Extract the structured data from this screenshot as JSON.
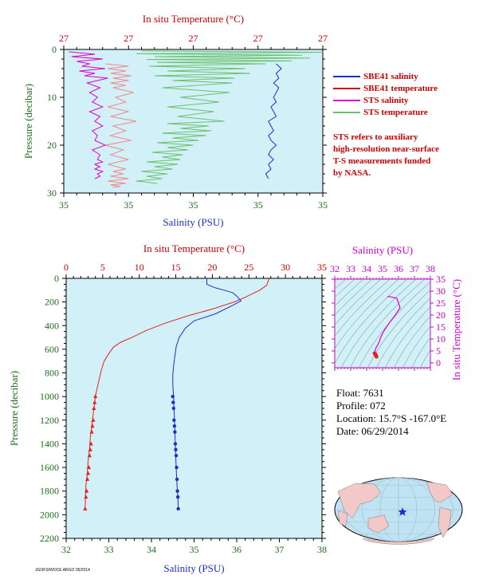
{
  "colors": {
    "bg": "#d1f0f8",
    "temperature": "#e8211d",
    "salinity": "#1a2fcf",
    "sts_salinity": "#dd00cc",
    "sts_temperature": "#6cc26c",
    "sbe_temperature": "#f08a8a",
    "axis_red": "#cc0000",
    "axis_green": "#1e6e1e",
    "axis_blue": "#1a2fcf",
    "axis_magenta": "#cc00cc"
  },
  "legend": {
    "items": [
      {
        "label": "SBE41 salinity",
        "color": "#1a2fcf"
      },
      {
        "label": "SBE41 temperature",
        "color": "#cc0000"
      },
      {
        "label": "STS salinity",
        "color": "#dd00cc"
      },
      {
        "label": "STS temperature",
        "color": "#6cc26c"
      }
    ]
  },
  "note": {
    "lines": [
      "STS refers to auxiliary",
      "high-resolution near-surface",
      "T-S measurements funded",
      "by NASA."
    ]
  },
  "float_info": {
    "float": "Float:  7631",
    "profile": "Profile:  072",
    "location": "Location:  15.7°S  -167.0°E",
    "date": "Date:  06/29/2014"
  },
  "credit": "JGOFS/WOCE  ARGO  05/2014",
  "chart_data": [
    {
      "type": "line",
      "panel": "near-surface",
      "title": "In situ Temperature (°C)",
      "xlabel": "Salinity (PSU)",
      "ylabel": "Pressure (decibar)",
      "top_ticks": [
        "27",
        "27",
        "27",
        "27",
        "27"
      ],
      "bottom_ticks": [
        "35",
        "35",
        "35",
        "35",
        "35"
      ],
      "y_ticks": [
        "0",
        "10",
        "20",
        "30"
      ],
      "ylim": [
        0,
        30
      ],
      "series": [
        {
          "name": "SBE41 salinity",
          "color": "#1a2fcf",
          "x": [
            0.82,
            0.84,
            0.82,
            0.83,
            0.81,
            0.83,
            0.82,
            0.81,
            0.82,
            0.8,
            0.81,
            0.82,
            0.79,
            0.8,
            0.81,
            0.79,
            0.8,
            0.82,
            0.8,
            0.79,
            0.81,
            0.79,
            0.8,
            0.78,
            0.79
          ],
          "y": [
            3,
            4,
            5,
            6,
            7,
            8,
            9,
            10,
            11,
            12,
            13,
            14,
            15,
            16,
            17,
            18,
            19,
            20,
            21,
            22,
            23,
            24,
            25,
            26,
            27
          ]
        },
        {
          "name": "SBE41 temperature",
          "color": "#f08a8a",
          "x": [
            0.16,
            0.25,
            0.17,
            0.24,
            0.18,
            0.26,
            0.19,
            0.25,
            0.18,
            0.24,
            0.19,
            0.27,
            0.2,
            0.24,
            0.17,
            0.25,
            0.18,
            0.28,
            0.19,
            0.24,
            0.18,
            0.26,
            0.16,
            0.23,
            0.18,
            0.25,
            0.17,
            0.24,
            0.19,
            0.23,
            0.18,
            0.25,
            0.17,
            0.24,
            0.18,
            0.22,
            0.19
          ],
          "y": [
            3,
            3.5,
            4,
            4.5,
            5,
            5.5,
            6,
            6.5,
            7,
            7.5,
            8,
            9,
            10,
            11,
            12,
            13,
            14,
            15,
            16,
            17,
            18,
            19,
            20,
            21,
            22,
            23,
            24,
            25,
            25.5,
            26,
            26.5,
            27,
            27.5,
            28,
            28.3,
            28.6,
            28.8
          ]
        },
        {
          "name": "STS salinity",
          "color": "#dd00cc",
          "x": [
            0.02,
            0.12,
            0.03,
            0.15,
            0.05,
            0.1,
            0.07,
            0.16,
            0.06,
            0.12,
            0.08,
            0.17,
            0.09,
            0.14,
            0.1,
            0.13,
            0.11,
            0.15,
            0.1,
            0.14,
            0.12,
            0.15,
            0.11,
            0.13,
            0.12,
            0.16,
            0.11,
            0.14,
            0.13,
            0.15,
            0.12,
            0.14,
            0.12,
            0.15,
            0.13,
            0.14,
            0.12
          ],
          "y": [
            0.5,
            1,
            1.5,
            2,
            2.5,
            3,
            3.5,
            4,
            4.5,
            5,
            5.5,
            6,
            7,
            8,
            9,
            10,
            11,
            12,
            13,
            14,
            15,
            16,
            17,
            18,
            19,
            20,
            21,
            22,
            23,
            23.5,
            24,
            24.5,
            25,
            25.5,
            26,
            26.5,
            27
          ]
        },
        {
          "name": "STS temperature",
          "color": "#6cc26c",
          "x": [
            0.3,
            1.0,
            0.28,
            0.92,
            0.35,
            0.95,
            0.32,
            0.88,
            0.36,
            0.78,
            0.33,
            0.7,
            0.4,
            0.72,
            0.35,
            0.66,
            0.42,
            0.65,
            0.38,
            0.64,
            0.45,
            0.6,
            0.4,
            0.58,
            0.44,
            0.62,
            0.4,
            0.56,
            0.45,
            0.57,
            0.38,
            0.55,
            0.42,
            0.52,
            0.36,
            0.5,
            0.4,
            0.48,
            0.34,
            0.46,
            0.38,
            0.45,
            0.32,
            0.44,
            0.35,
            0.42,
            0.3,
            0.4,
            0.32,
            0.38,
            0.28,
            0.36
          ],
          "y": [
            0.3,
            0.6,
            0.9,
            1.2,
            1.5,
            1.8,
            2.1,
            2.4,
            2.7,
            3.0,
            3.5,
            4,
            4.5,
            5,
            5.5,
            6,
            6.5,
            7,
            8,
            9,
            10,
            11,
            12,
            13,
            14,
            15,
            15.5,
            16,
            16.5,
            17,
            17.5,
            18,
            18.5,
            19,
            19.5,
            20,
            20.5,
            21,
            21.5,
            22,
            22.5,
            23,
            23.5,
            24,
            24.5,
            25,
            25.5,
            26,
            26.5,
            27,
            27.5,
            28
          ]
        }
      ]
    },
    {
      "type": "line",
      "panel": "full-depth",
      "title": "In situ Temperature (°C)",
      "xlabel": "Salinity (PSU)",
      "ylabel": "Pressure (decibar)",
      "temperature_ticks": [
        0,
        5,
        10,
        15,
        20,
        25,
        30,
        35
      ],
      "salinity_ticks": [
        32,
        33,
        34,
        35,
        36,
        37,
        38
      ],
      "pressure_ticks": [
        0,
        200,
        400,
        600,
        800,
        1000,
        1200,
        1400,
        1600,
        1800,
        2000,
        2200
      ],
      "xlim_temperature": [
        0,
        35
      ],
      "xlim_salinity": [
        32,
        38
      ],
      "ylim": [
        0,
        2200
      ],
      "series": [
        {
          "name": "Temperature",
          "color": "#e8211d",
          "x": [
            27.8,
            27.6,
            27.4,
            26.5,
            24.5,
            23.0,
            20.0,
            16.5,
            13.5,
            11.0,
            9.0,
            7.5,
            6.5,
            5.8,
            5.2,
            4.8,
            4.5,
            4.2,
            4.0,
            3.9,
            3.7,
            3.5,
            3.3,
            3.2,
            3.0,
            2.9,
            2.7,
            2.6
          ],
          "y": [
            0,
            30,
            60,
            100,
            160,
            200,
            260,
            320,
            380,
            440,
            500,
            540,
            580,
            640,
            700,
            780,
            860,
            940,
            1000,
            1050,
            1150,
            1250,
            1350,
            1450,
            1550,
            1650,
            1750,
            1950
          ]
        },
        {
          "name": "Temperature samples",
          "color": "#e8211d",
          "marker": "triangle",
          "x": [
            4.0,
            3.9,
            3.8,
            3.7,
            3.6,
            3.5,
            3.4,
            3.3,
            3.2,
            3.1,
            3.0,
            2.9,
            2.8,
            2.7,
            2.6
          ],
          "y": [
            1000,
            1050,
            1100,
            1200,
            1250,
            1300,
            1400,
            1450,
            1500,
            1600,
            1650,
            1700,
            1800,
            1850,
            1950
          ]
        },
        {
          "name": "Salinity",
          "color": "#1a2fcf",
          "x": [
            35.3,
            35.3,
            35.5,
            35.7,
            35.9,
            36.0,
            36.1,
            35.9,
            35.5,
            35.0,
            34.8,
            34.65,
            34.58,
            34.55,
            34.52,
            34.5,
            34.5,
            34.52,
            34.54,
            34.56,
            34.58,
            34.6,
            34.62,
            34.63
          ],
          "y": [
            0,
            50,
            80,
            100,
            120,
            150,
            190,
            230,
            300,
            360,
            420,
            500,
            580,
            660,
            740,
            820,
            900,
            1000,
            1200,
            1400,
            1600,
            1750,
            1850,
            1950
          ]
        },
        {
          "name": "Salinity samples",
          "color": "#1a2fcf",
          "marker": "circle",
          "x": [
            34.5,
            34.51,
            34.52,
            34.53,
            34.54,
            34.55,
            34.56,
            34.57,
            34.58,
            34.59,
            34.6,
            34.61,
            34.62,
            34.63
          ],
          "y": [
            1000,
            1050,
            1100,
            1200,
            1250,
            1300,
            1400,
            1450,
            1500,
            1600,
            1700,
            1800,
            1850,
            1950
          ]
        }
      ]
    },
    {
      "type": "line",
      "panel": "T-S diagram",
      "title": "Salinity (PSU)",
      "ylabel": "In situ Temperature (°C)",
      "salinity_ticks": [
        32,
        33,
        34,
        35,
        36,
        37,
        38
      ],
      "temperature_ticks": [
        0,
        5,
        10,
        15,
        20,
        25,
        30,
        35
      ],
      "xlim": [
        32,
        38
      ],
      "ylim": [
        -2,
        35
      ],
      "series": [
        {
          "name": "T-S curve",
          "color": "#dd00cc",
          "x": [
            35.3,
            35.5,
            35.9,
            36.1,
            35.8,
            35.4,
            35.1,
            34.9,
            34.8,
            34.7,
            34.6,
            34.55,
            34.5,
            34.5,
            34.55,
            34.6
          ],
          "y": [
            27.8,
            27.6,
            27.0,
            23.0,
            20.0,
            16.5,
            13.5,
            11.0,
            9.0,
            7.5,
            6.5,
            5.5,
            4.5,
            4.0,
            3.5,
            3.0
          ]
        },
        {
          "name": "Deep samples",
          "color": "#e8211d",
          "x": [
            34.5,
            34.52,
            34.55,
            34.58,
            34.6,
            34.62
          ],
          "y": [
            4.0,
            3.8,
            3.5,
            3.2,
            2.9,
            2.6
          ]
        }
      ]
    }
  ]
}
